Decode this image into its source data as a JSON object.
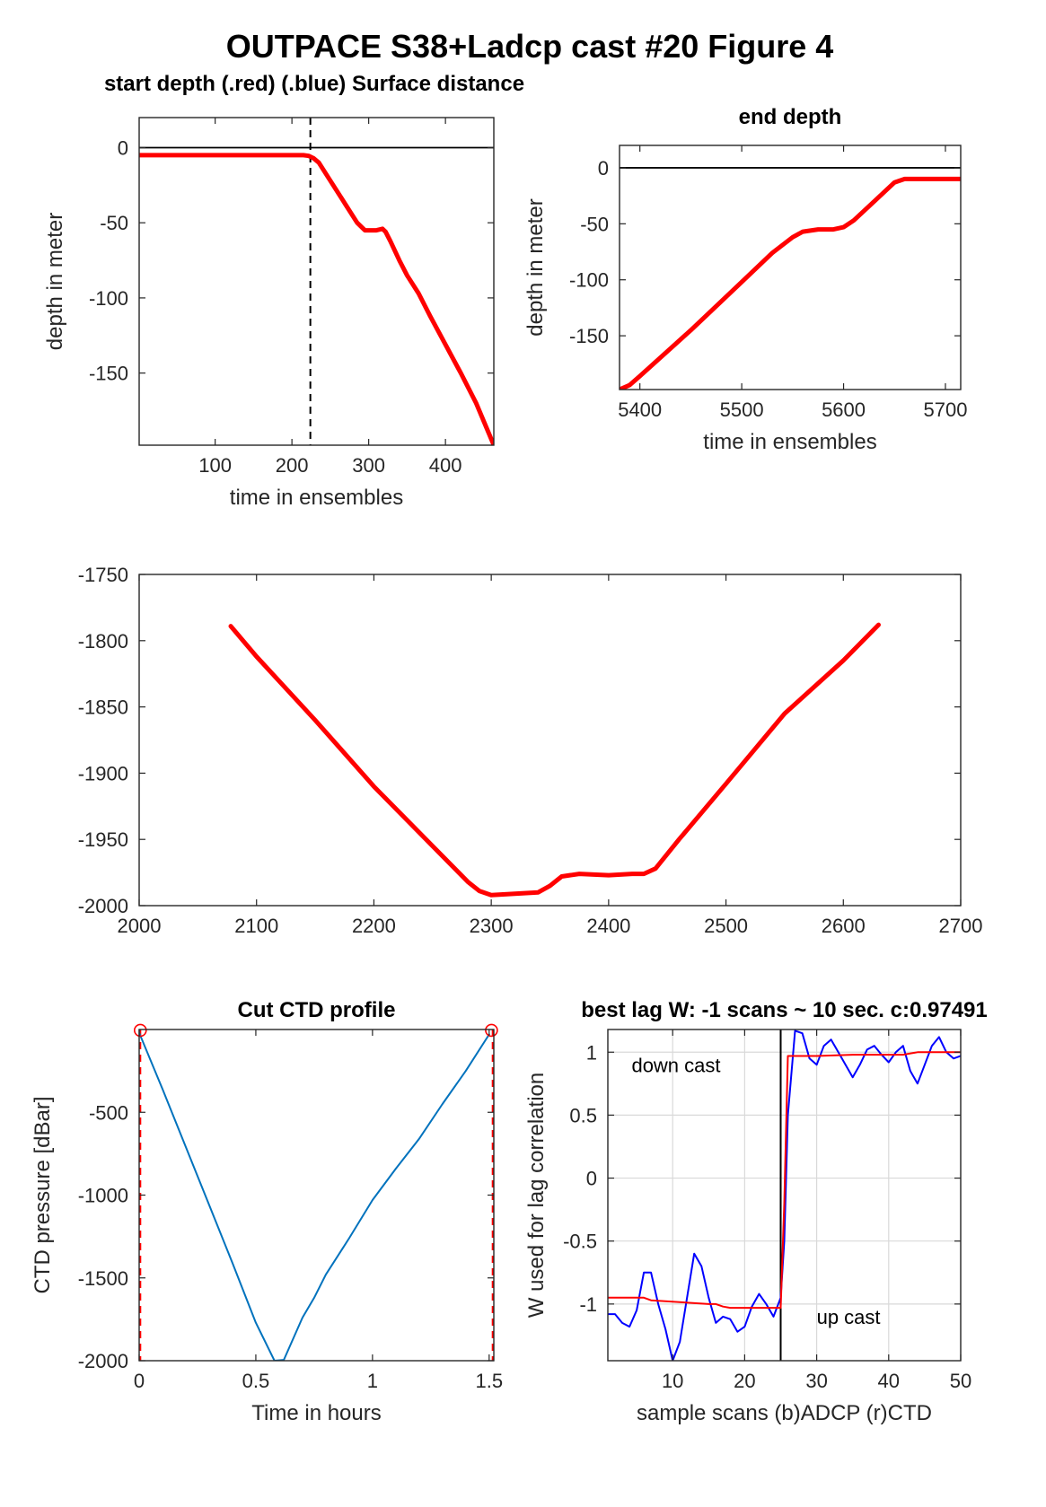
{
  "figure": {
    "title": "OUTPACE S38+Ladcp cast #20   Figure 4"
  },
  "chart_data": [
    {
      "id": "start",
      "type": "line",
      "title": "start depth (.red) (.blue) Surface distance",
      "xlabel": "time in ensembles",
      "ylabel": "depth in meter",
      "xlim": [
        1,
        463
      ],
      "ylim": [
        -198,
        20
      ],
      "xticks": [
        100,
        200,
        300,
        400
      ],
      "yticks": [
        0,
        -50,
        -100,
        -150
      ],
      "series": [
        {
          "color": "#ff0000",
          "x": [
            1,
            100,
            200,
            215,
            222,
            228,
            235,
            250,
            270,
            285,
            295,
            310,
            318,
            322,
            328,
            340,
            350,
            365,
            380,
            400,
            420,
            440,
            463
          ],
          "y": [
            -5,
            -5,
            -5,
            -5,
            -5.5,
            -7,
            -10,
            -22,
            -38,
            -50,
            -55,
            -55,
            -54,
            -56,
            -62,
            -75,
            -85,
            -97,
            -112,
            -131,
            -150,
            -170,
            -198
          ]
        }
      ],
      "hlines": [
        {
          "y": 0,
          "color": "#000000"
        }
      ],
      "vlines": [
        {
          "x": 224,
          "color": "#000000",
          "dash": true
        }
      ]
    },
    {
      "id": "end",
      "type": "line",
      "title": "end depth",
      "xlabel": "time in ensembles",
      "ylabel": "depth in meter",
      "xlim": [
        5380,
        5715
      ],
      "ylim": [
        -198,
        20
      ],
      "xticks": [
        5400,
        5500,
        5600,
        5700
      ],
      "yticks": [
        0,
        -50,
        -100,
        -150
      ],
      "series": [
        {
          "color": "#ff0000",
          "x": [
            5380,
            5390,
            5400,
            5450,
            5500,
            5530,
            5550,
            5560,
            5575,
            5590,
            5600,
            5610,
            5630,
            5650,
            5660,
            5715
          ],
          "y": [
            -198,
            -194,
            -186,
            -145,
            -102,
            -76,
            -62,
            -57,
            -55,
            -55,
            -53,
            -47,
            -30,
            -13,
            -10,
            -10
          ]
        }
      ],
      "hlines": [
        {
          "y": 0,
          "color": "#000000"
        }
      ]
    },
    {
      "id": "bottom",
      "type": "line",
      "xlim": [
        2000,
        2700
      ],
      "ylim": [
        -2000,
        -1750
      ],
      "xticks": [
        2000,
        2100,
        2200,
        2300,
        2400,
        2500,
        2600,
        2700
      ],
      "yticks": [
        -1750,
        -1800,
        -1850,
        -1900,
        -1950,
        -2000
      ],
      "series": [
        {
          "color": "#ff0000",
          "x": [
            2078,
            2100,
            2150,
            2200,
            2250,
            2280,
            2290,
            2300,
            2340,
            2350,
            2360,
            2375,
            2400,
            2420,
            2430,
            2440,
            2460,
            2500,
            2550,
            2600,
            2630
          ],
          "y": [
            -1789,
            -1812,
            -1860,
            -1910,
            -1955,
            -1982,
            -1989,
            -1992,
            -1990,
            -1985,
            -1978,
            -1976,
            -1977,
            -1976,
            -1976,
            -1972,
            -1950,
            -1908,
            -1855,
            -1815,
            -1788
          ]
        }
      ]
    },
    {
      "id": "ctd",
      "type": "line",
      "title": "Cut CTD profile",
      "xlabel": "Time in hours",
      "ylabel": "CTD pressure [dBar]",
      "xlim": [
        0,
        1.52
      ],
      "ylim": [
        -2000,
        0
      ],
      "xticks": [
        0,
        0.5,
        1,
        1.5
      ],
      "xtick_labels": [
        "0",
        "0.5",
        "1",
        "1.5"
      ],
      "yticks": [
        -500,
        -1000,
        -1500,
        -2000
      ],
      "series": [
        {
          "color": "#0072bd",
          "x": [
            0,
            0.1,
            0.2,
            0.3,
            0.4,
            0.5,
            0.58,
            0.62,
            0.7,
            0.75,
            0.8,
            0.9,
            1.0,
            1.1,
            1.2,
            1.3,
            1.4,
            1.5
          ],
          "y": [
            -20,
            -360,
            -710,
            -1060,
            -1410,
            -1770,
            -2000,
            -1995,
            -1740,
            -1620,
            -1480,
            -1260,
            -1030,
            -840,
            -660,
            -450,
            -250,
            -30
          ]
        }
      ],
      "vlines": [
        {
          "x": 0.005,
          "color": "#ff0000",
          "dash": true
        },
        {
          "x": 1.515,
          "color": "#ff0000",
          "dash": true
        }
      ],
      "markers": [
        {
          "x": 0.005,
          "y": -5,
          "color": "#ff0000"
        },
        {
          "x": 1.51,
          "y": -5,
          "color": "#ff0000"
        }
      ]
    },
    {
      "id": "lag",
      "type": "line",
      "title": "best lag W: -1 scans ~ 10 sec.  c:0.97491",
      "xlabel": "sample scans (b)ADCP (r)CTD",
      "ylabel": "W used for lag correlation",
      "xlim": [
        1,
        50
      ],
      "ylim": [
        -1.45,
        1.18
      ],
      "xticks": [
        10,
        20,
        30,
        40,
        50
      ],
      "yticks": [
        1,
        0.5,
        0,
        -0.5,
        -1
      ],
      "ytick_labels": [
        "1",
        "0.5",
        "0",
        "-0.5",
        "-1"
      ],
      "grid": true,
      "annotations": [
        {
          "text": "down cast",
          "x": 4.3,
          "y": 0.9
        },
        {
          "text": "up cast",
          "x": 30,
          "y": -1.1
        }
      ],
      "vlines": [
        {
          "x": 25,
          "color": "#000000"
        }
      ],
      "series": [
        {
          "name": "(b)ADCP",
          "color": "#0000ff",
          "x": [
            1,
            2,
            3,
            4,
            5,
            6,
            7,
            8,
            9,
            10,
            11,
            12,
            13,
            14,
            15,
            16,
            17,
            18,
            19,
            20,
            21,
            22,
            23,
            24,
            25,
            25.5,
            26,
            27,
            28,
            29,
            30,
            31,
            32,
            33,
            34,
            35,
            36,
            37,
            38,
            39,
            40,
            41,
            42,
            43,
            44,
            45,
            46,
            47,
            48,
            49,
            50
          ],
          "y": [
            -1.08,
            -1.08,
            -1.15,
            -1.18,
            -1.05,
            -0.75,
            -0.75,
            -1.0,
            -1.2,
            -1.45,
            -1.3,
            -0.95,
            -0.6,
            -0.7,
            -0.95,
            -1.15,
            -1.1,
            -1.12,
            -1.22,
            -1.18,
            -1.02,
            -0.92,
            -1.0,
            -1.1,
            -0.95,
            -0.5,
            0.5,
            1.17,
            1.15,
            0.95,
            0.9,
            1.05,
            1.1,
            1.0,
            0.9,
            0.8,
            0.9,
            1.02,
            1.05,
            0.98,
            0.92,
            1.0,
            1.05,
            0.85,
            0.75,
            0.9,
            1.05,
            1.12,
            1.0,
            0.95,
            0.97
          ]
        },
        {
          "name": "(r)CTD",
          "color": "#ff0000",
          "x": [
            1,
            5,
            6,
            7,
            15,
            16,
            17,
            18,
            22,
            25,
            25.5,
            26,
            27,
            30,
            35,
            38,
            42,
            44,
            50
          ],
          "y": [
            -0.95,
            -0.95,
            -0.95,
            -0.97,
            -1.0,
            -1.0,
            -1.02,
            -1.03,
            -1.03,
            -1.03,
            -0.2,
            0.97,
            0.97,
            0.97,
            0.98,
            0.98,
            0.98,
            1.0,
            1.0
          ]
        }
      ]
    }
  ]
}
